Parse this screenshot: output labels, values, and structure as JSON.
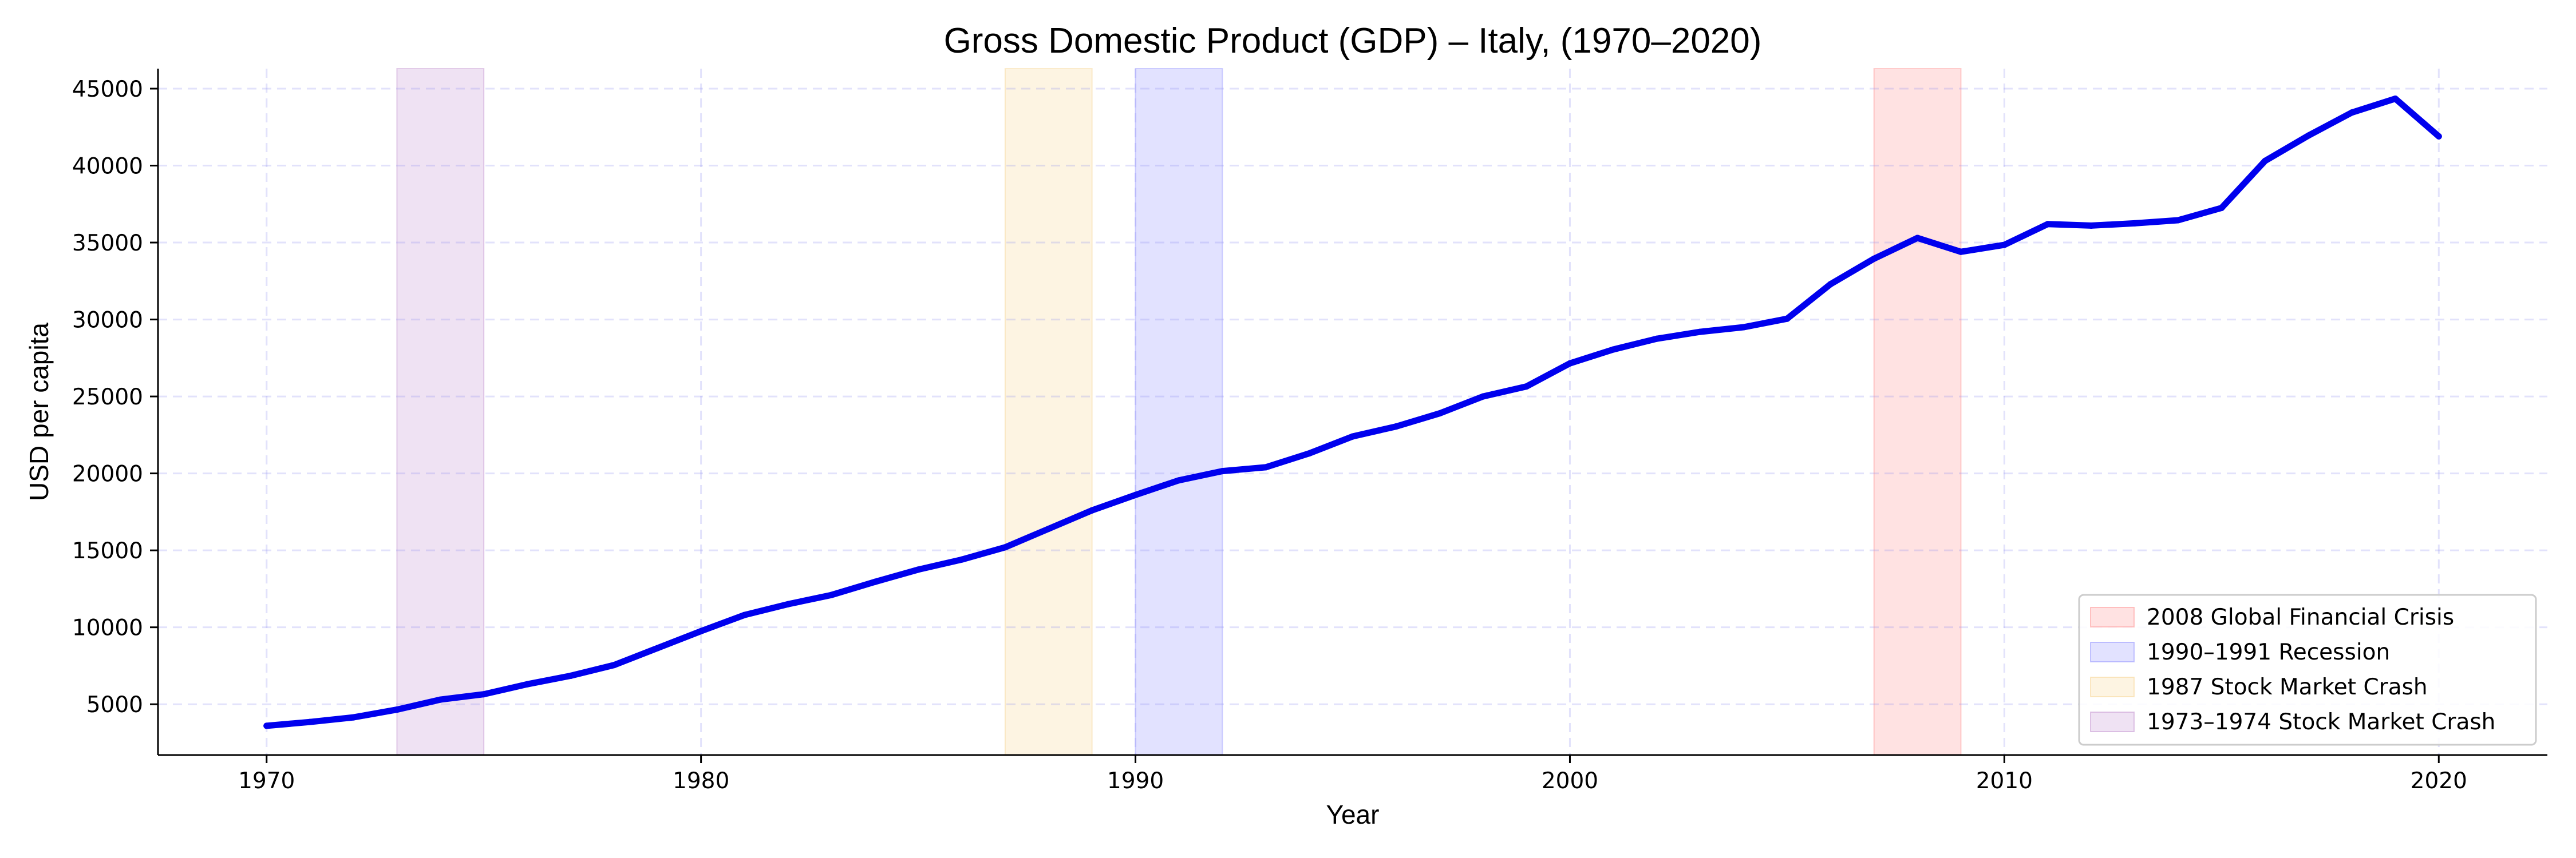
{
  "chart_data": {
    "type": "line",
    "title": "Gross Domestic Product (GDP) – Italy, (1970–2020)",
    "xlabel": "Year",
    "ylabel": "USD per capita",
    "xlim": [
      1967.5,
      2022.5
    ],
    "ylim": [
      1700,
      46300
    ],
    "xticks": [
      1970,
      1980,
      1990,
      2000,
      2010,
      2020
    ],
    "yticks": [
      5000,
      10000,
      15000,
      20000,
      25000,
      30000,
      35000,
      40000,
      45000
    ],
    "grid": true,
    "legend_position": "lower-right",
    "series": [
      {
        "color": "#0000ee",
        "x": [
          1970,
          1971,
          1972,
          1973,
          1974,
          1975,
          1976,
          1977,
          1978,
          1979,
          1980,
          1981,
          1982,
          1983,
          1984,
          1985,
          1986,
          1987,
          1988,
          1989,
          1990,
          1991,
          1992,
          1993,
          1994,
          1995,
          1996,
          1997,
          1998,
          1999,
          2000,
          2001,
          2002,
          2003,
          2004,
          2005,
          2006,
          2007,
          2008,
          2009,
          2010,
          2011,
          2012,
          2013,
          2014,
          2015,
          2016,
          2017,
          2018,
          2019,
          2020
        ],
        "y": [
          3600,
          3850,
          4150,
          4650,
          5300,
          5650,
          6300,
          6850,
          7550,
          8650,
          9750,
          10800,
          11500,
          12100,
          12950,
          13750,
          14400,
          15200,
          16400,
          17600,
          18600,
          19550,
          20150,
          20400,
          21300,
          22400,
          23050,
          23900,
          25000,
          25650,
          27150,
          28050,
          28750,
          29200,
          29500,
          30050,
          32300,
          33950,
          35300,
          34400,
          34850,
          36200,
          36100,
          36250,
          36450,
          37250,
          40300,
          41950,
          43450,
          44350,
          41900
        ]
      }
    ],
    "shaded_periods": [
      {
        "label": "2008 Global Financial Crisis",
        "start": 2007,
        "end": 2009,
        "color": "#ff9f9f"
      },
      {
        "label": "1990–1991 Recession",
        "start": 1990,
        "end": 1992,
        "color": "#9f9fff"
      },
      {
        "label": "1987 Stock Market Crash",
        "start": 1987,
        "end": 1989,
        "color": "#f8d9a0"
      },
      {
        "label": "1973–1974 Stock Market Crash",
        "start": 1973,
        "end": 1975,
        "color": "#caa0d6"
      }
    ]
  }
}
